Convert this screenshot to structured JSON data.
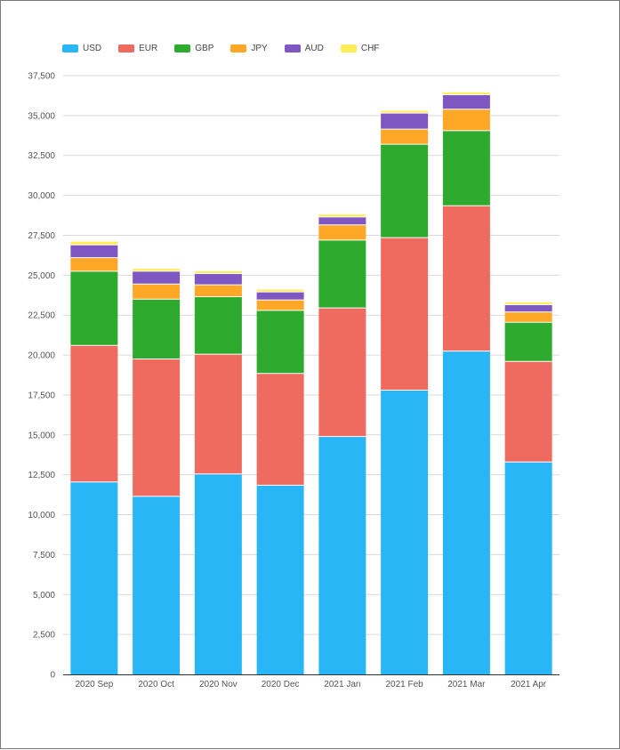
{
  "chart_data": {
    "type": "bar",
    "stacked": true,
    "categories": [
      "2020 Sep",
      "2020 Oct",
      "2020 Nov",
      "2020 Dec",
      "2021 Jan",
      "2021 Feb",
      "2021 Mar",
      "2021 Apr"
    ],
    "series": [
      {
        "name": "USD",
        "color": "#29b6f6",
        "values": [
          12050,
          11150,
          12550,
          11850,
          14900,
          17800,
          20250,
          13300
        ]
      },
      {
        "name": "EUR",
        "color": "#f06b5f",
        "values": [
          8550,
          8600,
          7500,
          7000,
          8050,
          9550,
          9100,
          6300
        ]
      },
      {
        "name": "GBP",
        "color": "#2eaa2e",
        "values": [
          4650,
          3750,
          3600,
          3950,
          4250,
          5850,
          4700,
          2450
        ]
      },
      {
        "name": "JPY",
        "color": "#ffa726",
        "values": [
          850,
          950,
          750,
          650,
          950,
          950,
          1350,
          650
        ]
      },
      {
        "name": "AUD",
        "color": "#7e57c2",
        "values": [
          800,
          800,
          700,
          500,
          500,
          1000,
          900,
          450
        ]
      },
      {
        "name": "CHF",
        "color": "#ffee58",
        "values": [
          200,
          150,
          150,
          150,
          150,
          150,
          150,
          150
        ]
      }
    ],
    "title": "",
    "xlabel": "",
    "ylabel": "",
    "ylim": [
      0,
      37500
    ],
    "yticks": [
      "0",
      "2,500",
      "5,000",
      "7,500",
      "10,000",
      "12,500",
      "15,000",
      "17,500",
      "20,000",
      "22,500",
      "25,000",
      "27,500",
      "30,000",
      "32,500",
      "35,000",
      "37,500"
    ],
    "grid": true,
    "legend_position": "top-left"
  }
}
